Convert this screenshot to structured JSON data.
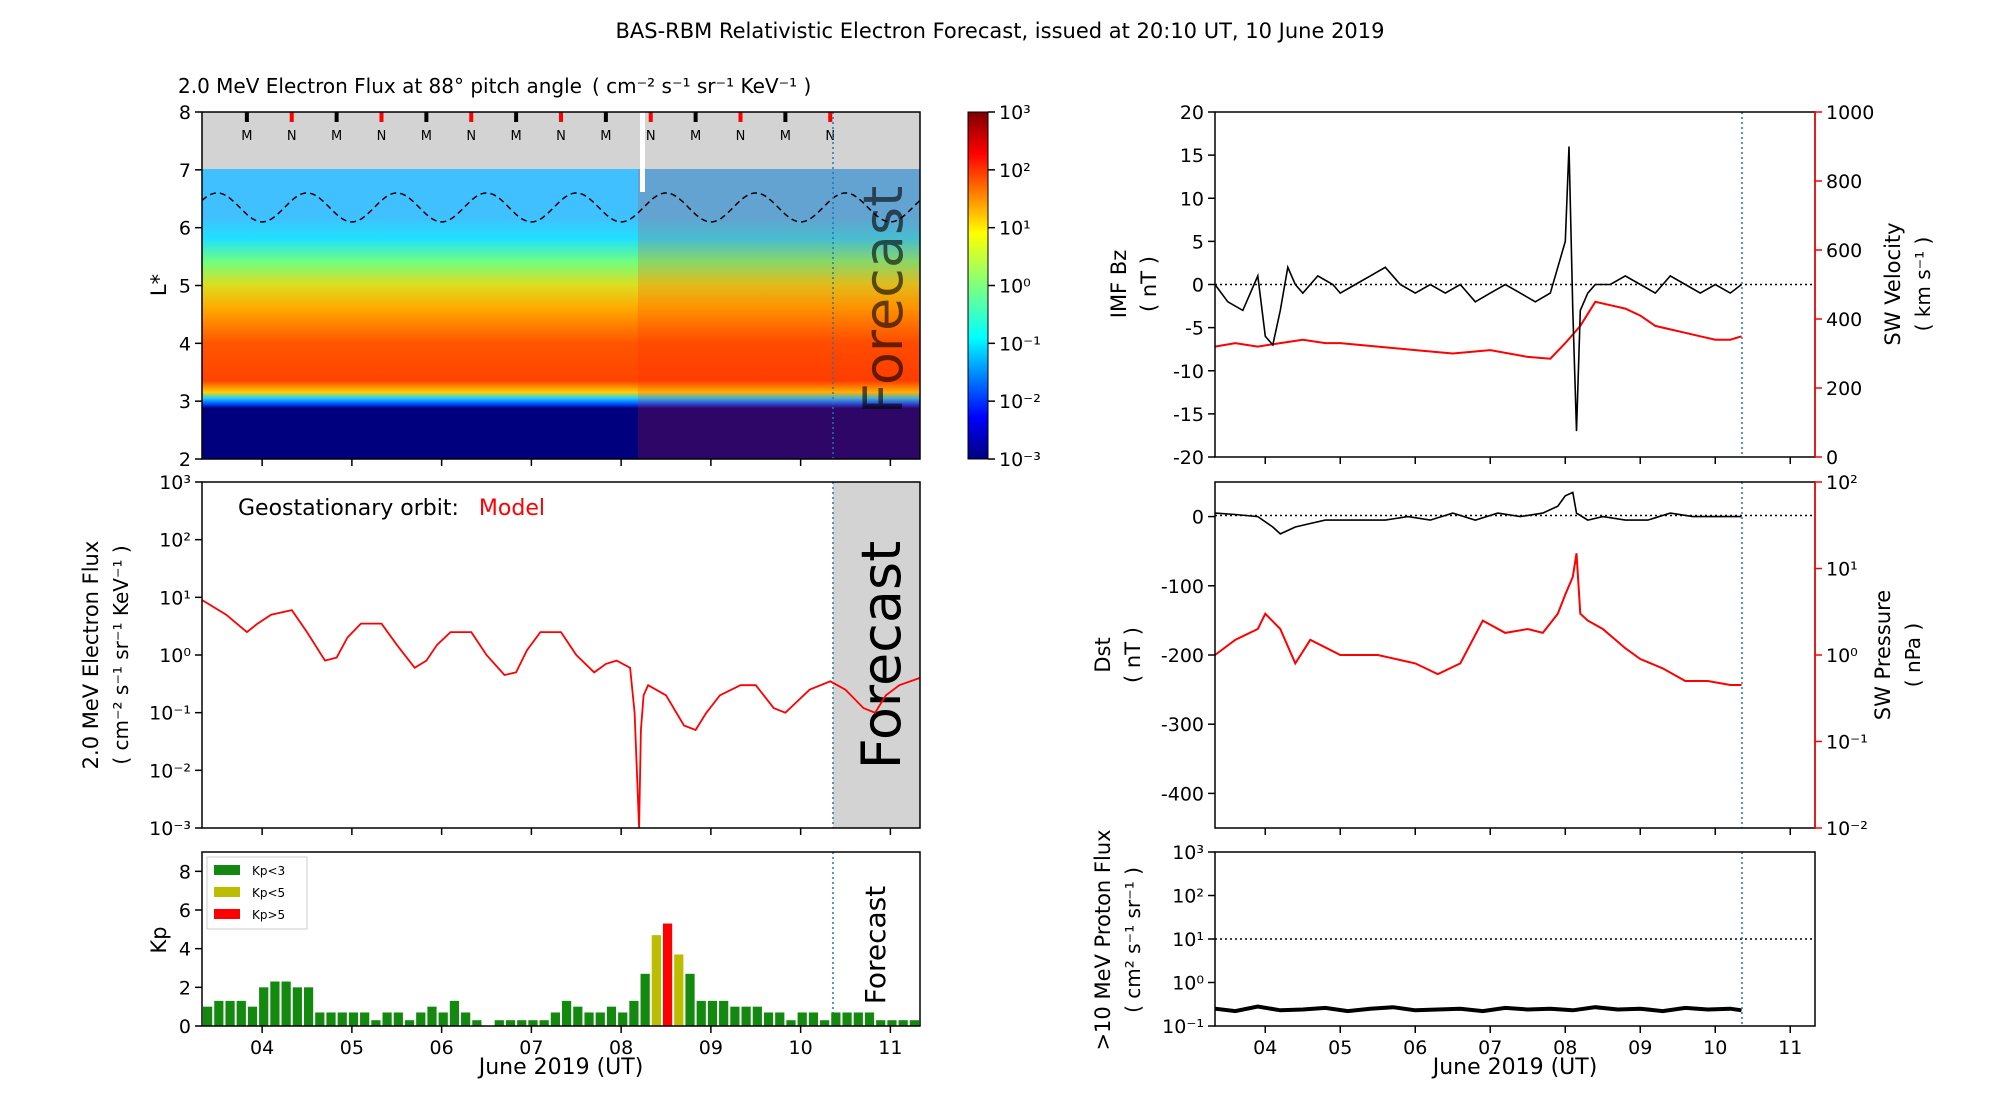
{
  "figure": {
    "title": "BAS-RBM Relativistic Electron Forecast, issued at 20:10 UT, 10 June 2019"
  },
  "days": [
    "04",
    "05",
    "06",
    "07",
    "08",
    "09",
    "10",
    "11"
  ],
  "date_axis_label": "June 2019 (UT)",
  "forecast_label": "Forecast",
  "issue_time_day": 10.35,
  "colors": {
    "black": "#000000",
    "red": "#ff0000",
    "grey": "#d3d3d3",
    "kp_low": "#138a0f",
    "kp_mid": "#bdbd00",
    "kp_high": "#ff0000",
    "dotted_blue": "#1f77b4"
  },
  "chart_data": [
    {
      "id": "flux_map",
      "type": "heatmap",
      "title": "2.0 MeV Electron Flux at 88° pitch angle",
      "title_units": "( cm⁻² s⁻¹ sr⁻¹ KeV⁻¹ )",
      "ylabel": "L*",
      "ylim": [
        2,
        8
      ],
      "yticks": [
        "2",
        "3",
        "4",
        "5",
        "6",
        "7",
        "8"
      ],
      "xlim": [
        3.33,
        11.33
      ],
      "colorbar_ticks": [
        "10⁻³",
        "10⁻²",
        "10⁻¹",
        "10⁰",
        "10¹",
        "10²",
        "10³"
      ],
      "colorbar_range_log10": [
        -3,
        3
      ],
      "data_rows": [
        {
          "l_star": [
            2.0,
            3.05
          ],
          "log_flux": -3
        },
        {
          "l_star": [
            3.05,
            3.3
          ],
          "log_flux": -1.5
        },
        {
          "l_star": [
            3.3,
            3.6
          ],
          "log_flux": 0.5
        },
        {
          "l_star": [
            3.6,
            4.8
          ],
          "log_flux": 2.0
        },
        {
          "l_star": [
            4.8,
            5.7
          ],
          "log_flux": 1.2
        },
        {
          "l_star": [
            5.7,
            7.0
          ],
          "log_flux": -0.5
        }
      ],
      "data_gap_l_star": [
        7.0,
        8.0
      ],
      "noon_midnight_marks": [
        {
          "day": 3.83,
          "label": "M"
        },
        {
          "day": 4.33,
          "label": "N"
        },
        {
          "day": 4.83,
          "label": "M"
        },
        {
          "day": 5.33,
          "label": "N"
        },
        {
          "day": 5.83,
          "label": "M"
        },
        {
          "day": 6.33,
          "label": "N"
        },
        {
          "day": 6.83,
          "label": "M"
        },
        {
          "day": 7.33,
          "label": "N"
        },
        {
          "day": 7.83,
          "label": "M"
        },
        {
          "day": 8.33,
          "label": "N"
        },
        {
          "day": 8.83,
          "label": "M"
        },
        {
          "day": 9.33,
          "label": "N"
        },
        {
          "day": 9.83,
          "label": "M"
        },
        {
          "day": 10.33,
          "label": "N"
        }
      ],
      "geo_l_star": {
        "min": 6.1,
        "max": 6.6,
        "period_days": 1.0
      }
    },
    {
      "id": "geo_flux",
      "type": "line",
      "ylabel": "2.0 MeV Electron Flux",
      "ylabel2": "( cm⁻² s⁻¹ sr⁻¹ KeV⁻¹ )",
      "legend_text": "Geostationary orbit:",
      "legend_series": "Model",
      "yscale": "log",
      "ylim": [
        0.001,
        1000
      ],
      "yticks": [
        "10⁻³",
        "10⁻²",
        "10⁻¹",
        "10⁰",
        "10¹",
        "10²",
        "10³"
      ],
      "series": [
        {
          "name": "Model",
          "x": [
            3.33,
            3.6,
            3.83,
            3.95,
            4.1,
            4.33,
            4.5,
            4.7,
            4.83,
            4.95,
            5.1,
            5.33,
            5.5,
            5.7,
            5.83,
            5.95,
            6.1,
            6.33,
            6.5,
            6.7,
            6.83,
            6.95,
            7.1,
            7.33,
            7.5,
            7.7,
            7.83,
            7.95,
            8.1,
            8.15,
            8.2,
            8.22,
            8.25,
            8.3,
            8.5,
            8.7,
            8.83,
            8.95,
            9.1,
            9.33,
            9.5,
            9.7,
            9.83,
            9.95,
            10.1,
            10.33,
            10.5,
            10.7,
            10.83,
            10.95,
            11.1,
            11.33
          ],
          "y": [
            9,
            5,
            2.5,
            3.5,
            5,
            6,
            2.5,
            0.8,
            0.9,
            2,
            3.5,
            3.5,
            1.5,
            0.6,
            0.8,
            1.5,
            2.5,
            2.5,
            1,
            0.45,
            0.5,
            1.2,
            2.5,
            2.5,
            1,
            0.5,
            0.7,
            0.8,
            0.6,
            0.1,
            0.001,
            0.05,
            0.2,
            0.3,
            0.2,
            0.06,
            0.05,
            0.1,
            0.2,
            0.3,
            0.3,
            0.12,
            0.1,
            0.15,
            0.25,
            0.35,
            0.25,
            0.12,
            0.1,
            0.2,
            0.3,
            0.4
          ]
        }
      ]
    },
    {
      "id": "kp",
      "type": "bar",
      "ylabel": "Kp",
      "ylim": [
        0,
        9
      ],
      "yticks": [
        "0",
        "2",
        "4",
        "6",
        "8"
      ],
      "legend": [
        "Kp<3",
        "Kp<5",
        "Kp>5"
      ],
      "bar_start_day": 3.33,
      "bar_width_days": 0.125,
      "values": [
        1,
        1.3,
        1.3,
        1.3,
        1,
        2,
        2.3,
        2.3,
        2,
        2,
        0.7,
        0.7,
        0.7,
        0.7,
        0.7,
        0.3,
        0.7,
        0.7,
        0.3,
        0.7,
        1,
        0.7,
        1.3,
        0.7,
        0.3,
        0,
        0.3,
        0.3,
        0.3,
        0.3,
        0.3,
        0.7,
        1.3,
        1,
        0.7,
        0.7,
        1,
        0.7,
        1.3,
        2.7,
        4.7,
        5.3,
        3.7,
        2.7,
        1.3,
        1.3,
        1.3,
        1,
        1,
        1,
        0.7,
        0.7,
        0.3,
        0.7,
        0.7,
        0.3,
        0.7,
        0.7,
        0.7,
        0.7,
        0.3,
        0.3,
        0.3,
        0.3
      ]
    },
    {
      "id": "imf_sw",
      "type": "line",
      "ylabel": "IMF Bz",
      "ylabel_units": "( nT )",
      "ylim": [
        -20,
        20
      ],
      "yticks": [
        "-20",
        "-15",
        "-10",
        "-5",
        "0",
        "5",
        "10",
        "15",
        "20"
      ],
      "ylabel_right": "SW Velocity",
      "ylabel_right_units": "( km s⁻¹ )",
      "ylim_right": [
        0,
        1000
      ],
      "yticks_right": [
        "0",
        "200",
        "400",
        "600",
        "800",
        "1000"
      ],
      "series": [
        {
          "x": [
            3.33,
            3.5,
            3.7,
            3.9,
            4.0,
            4.1,
            4.2,
            4.3,
            4.4,
            4.5,
            4.7,
            4.9,
            5.0,
            5.2,
            5.4,
            5.6,
            5.8,
            6.0,
            6.2,
            6.4,
            6.6,
            6.8,
            7.0,
            7.2,
            7.4,
            7.6,
            7.8,
            7.9,
            8.0,
            8.05,
            8.1,
            8.15,
            8.2,
            8.3,
            8.4,
            8.6,
            8.8,
            9.0,
            9.2,
            9.4,
            9.6,
            9.8,
            10.0,
            10.2,
            10.35
          ],
          "y": [
            0,
            -2,
            -3,
            1,
            -6,
            -7,
            -3,
            2,
            0,
            -1,
            1,
            0,
            -1,
            0,
            1,
            2,
            0,
            -1,
            0,
            -1,
            0,
            -2,
            -1,
            0,
            -1,
            -2,
            -1,
            2,
            5,
            16,
            -3,
            -17,
            -3,
            -1,
            0,
            0,
            1,
            0,
            -1,
            1,
            0,
            -1,
            0,
            -1,
            0
          ]
        },
        {
          "x": [
            3.33,
            3.6,
            3.9,
            4.2,
            4.5,
            4.8,
            5.0,
            5.5,
            6.0,
            6.5,
            7.0,
            7.5,
            7.8,
            8.0,
            8.2,
            8.4,
            8.6,
            8.8,
            9.0,
            9.2,
            9.4,
            9.6,
            9.8,
            10.0,
            10.2,
            10.35
          ],
          "y": [
            320,
            330,
            320,
            330,
            340,
            330,
            330,
            320,
            310,
            300,
            310,
            290,
            285,
            330,
            380,
            450,
            440,
            430,
            410,
            380,
            370,
            360,
            350,
            340,
            340,
            350
          ]
        }
      ]
    },
    {
      "id": "dst_sw",
      "type": "line",
      "ylabel": "Dst",
      "ylabel_units": "( nT )",
      "ylim": [
        -450,
        50
      ],
      "yticks": [
        "-400",
        "-300",
        "-200",
        "-100",
        "0"
      ],
      "ylabel_right": "SW Pressure",
      "ylabel_right_units": "( nPa )",
      "ylim_right": [
        0.01,
        100
      ],
      "yticks_right": [
        "10⁻²",
        "10⁻¹",
        "10⁰",
        "10¹",
        "10²"
      ],
      "series": [
        {
          "x": [
            3.33,
            3.6,
            3.9,
            4.1,
            4.2,
            4.4,
            4.6,
            4.8,
            5.0,
            5.3,
            5.6,
            5.9,
            6.2,
            6.5,
            6.8,
            7.1,
            7.4,
            7.7,
            7.9,
            8.0,
            8.1,
            8.15,
            8.3,
            8.5,
            8.8,
            9.1,
            9.4,
            9.7,
            10.0,
            10.35
          ],
          "y": [
            5,
            3,
            0,
            -15,
            -25,
            -15,
            -10,
            -5,
            -5,
            -5,
            -5,
            0,
            -5,
            5,
            -5,
            5,
            0,
            5,
            15,
            30,
            35,
            5,
            -5,
            0,
            -5,
            -5,
            5,
            0,
            0,
            0
          ]
        },
        {
          "x": [
            3.33,
            3.6,
            3.9,
            4.0,
            4.2,
            4.4,
            4.6,
            5.0,
            5.5,
            6.0,
            6.3,
            6.6,
            6.9,
            7.2,
            7.5,
            7.7,
            7.9,
            8.0,
            8.1,
            8.15,
            8.2,
            8.3,
            8.5,
            8.8,
            9.0,
            9.3,
            9.6,
            9.9,
            10.2,
            10.35
          ],
          "y": [
            1,
            1.5,
            2,
            3,
            2,
            0.8,
            1.5,
            1,
            1,
            0.8,
            0.6,
            0.8,
            2.5,
            1.8,
            2,
            1.8,
            3,
            5,
            8,
            15,
            3,
            2.5,
            2,
            1.2,
            0.9,
            0.7,
            0.5,
            0.5,
            0.45,
            0.45
          ]
        }
      ]
    },
    {
      "id": "proton",
      "type": "line",
      "ylabel": ">10 MeV Proton Flux",
      "ylabel_units": "( cm² s⁻¹ sr⁻¹ )",
      "yscale": "log",
      "ylim": [
        0.1,
        1000
      ],
      "yticks": [
        "10⁻¹",
        "10⁰",
        "10¹",
        "10²",
        "10³"
      ],
      "threshold": 10,
      "series": [
        {
          "x": [
            3.33,
            3.6,
            3.9,
            4.2,
            4.5,
            4.8,
            5.1,
            5.4,
            5.7,
            6.0,
            6.3,
            6.6,
            6.9,
            7.2,
            7.5,
            7.8,
            8.1,
            8.4,
            8.7,
            9.0,
            9.3,
            9.6,
            9.9,
            10.2,
            10.35
          ],
          "y": [
            0.25,
            0.22,
            0.28,
            0.23,
            0.24,
            0.26,
            0.22,
            0.25,
            0.27,
            0.23,
            0.24,
            0.25,
            0.22,
            0.26,
            0.24,
            0.25,
            0.23,
            0.27,
            0.24,
            0.25,
            0.22,
            0.26,
            0.24,
            0.25,
            0.23
          ]
        }
      ]
    }
  ]
}
